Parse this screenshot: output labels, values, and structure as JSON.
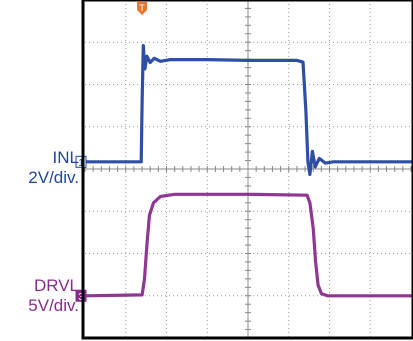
{
  "chart_data": {
    "type": "line",
    "title": "",
    "xlabel": "",
    "ylabel": "",
    "grid": true,
    "grid_divisions": {
      "x": 8,
      "y": 8
    },
    "time_axis_divisions": [
      0,
      8
    ],
    "trigger_marker": {
      "symbol": "T",
      "time_div": 1.4,
      "color": "#e8752a"
    },
    "series": [
      {
        "name": "INL",
        "channel": "1",
        "scale": "2V/div.",
        "color": "#2346a0",
        "baseline_div": 4.17,
        "points_div": [
          [
            0.0,
            0.0
          ],
          [
            1.38,
            0.0
          ],
          [
            1.4,
            1.4
          ],
          [
            1.43,
            2.75
          ],
          [
            1.47,
            2.2
          ],
          [
            1.52,
            2.5
          ],
          [
            1.6,
            2.35
          ],
          [
            1.7,
            2.45
          ],
          [
            1.85,
            2.38
          ],
          [
            2.1,
            2.42
          ],
          [
            3.0,
            2.42
          ],
          [
            4.0,
            2.4
          ],
          [
            5.2,
            2.4
          ],
          [
            5.35,
            2.36
          ],
          [
            5.42,
            1.2
          ],
          [
            5.47,
            0.0
          ],
          [
            5.52,
            -0.3
          ],
          [
            5.58,
            0.25
          ],
          [
            5.65,
            -0.12
          ],
          [
            5.75,
            0.08
          ],
          [
            5.9,
            -0.03
          ],
          [
            6.1,
            0.0
          ],
          [
            8.0,
            0.0
          ]
        ]
      },
      {
        "name": "DRVL",
        "channel": "3",
        "scale": "5V/div.",
        "color": "#8a2b8e",
        "baseline_div": 1.0,
        "points_div": [
          [
            0.0,
            0.0
          ],
          [
            1.4,
            0.02
          ],
          [
            1.46,
            0.4
          ],
          [
            1.52,
            1.2
          ],
          [
            1.58,
            1.9
          ],
          [
            1.68,
            2.2
          ],
          [
            1.85,
            2.35
          ],
          [
            2.2,
            2.4
          ],
          [
            4.0,
            2.4
          ],
          [
            5.45,
            2.38
          ],
          [
            5.52,
            2.2
          ],
          [
            5.6,
            1.6
          ],
          [
            5.66,
            0.8
          ],
          [
            5.72,
            0.25
          ],
          [
            5.8,
            0.05
          ],
          [
            5.95,
            0.0
          ],
          [
            8.0,
            0.0
          ]
        ]
      }
    ]
  },
  "labels": {
    "inl_line1": "INL",
    "inl_line2": "2V/div.",
    "drvl_line1": "DRVL",
    "drvl_line2": "5V/div.",
    "inl_color": "#2346a0",
    "drvl_color": "#8a2b8e"
  }
}
